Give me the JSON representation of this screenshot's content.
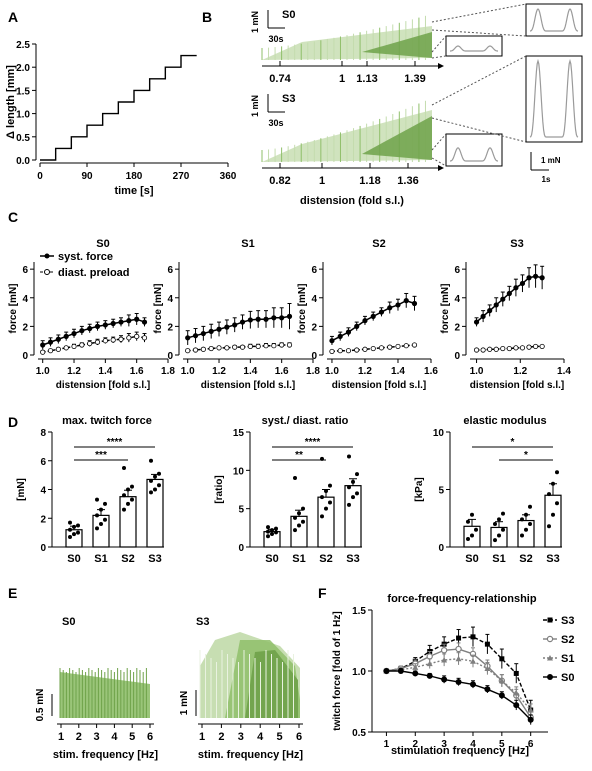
{
  "figure": {
    "panel_letters": [
      "A",
      "B",
      "C",
      "D",
      "E",
      "F"
    ],
    "colors": {
      "ink": "#000000",
      "grey": "#7f7f7f",
      "green_dark": "#6fa24a",
      "green_mid": "#8fbf6a",
      "green_light": "#c4dcae",
      "trace_grey": "#9a9a9a"
    }
  },
  "chart_data": [
    {
      "id": "A",
      "type": "line",
      "xlabel": "time [s]",
      "ylabel": "Δ length [mm]",
      "x_ticks": [
        "0",
        "90",
        "180",
        "270",
        "360"
      ],
      "y_ticks": [
        "0.0",
        "0.5",
        "1.0",
        "1.5",
        "2.0",
        "2.5"
      ],
      "xlim": [
        0,
        360
      ],
      "ylim": [
        0,
        2.5
      ],
      "step_x": [
        0,
        30,
        30,
        60,
        60,
        90,
        90,
        120,
        120,
        150,
        150,
        180,
        180,
        210,
        210,
        240,
        240,
        270,
        270,
        300
      ],
      "step_y": [
        0,
        0,
        0.25,
        0.25,
        0.5,
        0.5,
        0.75,
        0.75,
        1.0,
        1.0,
        1.25,
        1.25,
        1.5,
        1.5,
        1.75,
        1.75,
        2.0,
        2.0,
        2.25,
        2.25
      ]
    },
    {
      "id": "B",
      "type": "area",
      "xlabel": "distension (fold s.l.)",
      "traces": [
        {
          "label": "S0",
          "ticks": [
            "0.74",
            "1",
            "1.13",
            "1.39"
          ],
          "scale_y": "1 mN",
          "scale_x": "30s"
        },
        {
          "label": "S3",
          "ticks": [
            "0.82",
            "1",
            "1.18",
            "1.36"
          ],
          "scale_y": "1 mN",
          "scale_x": "30s"
        }
      ],
      "inset_scale": {
        "y": "1 mN",
        "x": "1s"
      }
    },
    {
      "id": "C",
      "type": "line",
      "xlabel": "distension [fold s.l.]",
      "ylabel": "force [mN]",
      "legend": [
        "syst. force",
        "diast. preload"
      ],
      "legend_position": "top-left",
      "ylim": [
        0,
        6.5
      ],
      "y_ticks": [
        "0",
        "2",
        "4",
        "6"
      ],
      "panels": [
        {
          "title": "S0",
          "x_ticks": [
            "1.0",
            "1.2",
            "1.4",
            "1.6",
            "1.8"
          ],
          "xlim": [
            0.97,
            1.8
          ],
          "x": [
            1.0,
            1.05,
            1.1,
            1.15,
            1.2,
            1.25,
            1.3,
            1.35,
            1.4,
            1.45,
            1.5,
            1.55,
            1.6,
            1.65
          ],
          "syst": [
            0.7,
            0.9,
            1.1,
            1.3,
            1.5,
            1.7,
            1.85,
            2.0,
            2.1,
            2.2,
            2.3,
            2.4,
            2.5,
            2.3
          ],
          "syst_err": [
            0.3,
            0.3,
            0.3,
            0.3,
            0.3,
            0.3,
            0.3,
            0.3,
            0.3,
            0.3,
            0.3,
            0.4,
            0.4,
            0.3
          ],
          "diast": [
            0.2,
            0.3,
            0.4,
            0.5,
            0.6,
            0.7,
            0.8,
            0.9,
            1.0,
            1.05,
            1.1,
            1.2,
            1.3,
            1.2
          ],
          "diast_err": [
            0.1,
            0.1,
            0.1,
            0.1,
            0.15,
            0.15,
            0.2,
            0.2,
            0.2,
            0.2,
            0.25,
            0.3,
            0.3,
            0.3
          ]
        },
        {
          "title": "S1",
          "x_ticks": [
            "1.0",
            "1.2",
            "1.4",
            "1.6",
            "1.8"
          ],
          "xlim": [
            0.97,
            1.8
          ],
          "x": [
            1.0,
            1.05,
            1.1,
            1.15,
            1.2,
            1.25,
            1.3,
            1.35,
            1.4,
            1.45,
            1.5,
            1.55,
            1.6,
            1.65
          ],
          "syst": [
            1.2,
            1.35,
            1.5,
            1.65,
            1.8,
            1.95,
            2.1,
            2.3,
            2.45,
            2.5,
            2.5,
            2.6,
            2.6,
            2.7
          ],
          "syst_err": [
            0.5,
            0.5,
            0.5,
            0.5,
            0.5,
            0.5,
            0.5,
            0.5,
            0.6,
            0.6,
            0.6,
            0.7,
            0.7,
            0.9
          ],
          "diast": [
            0.3,
            0.35,
            0.4,
            0.45,
            0.5,
            0.5,
            0.55,
            0.55,
            0.6,
            0.6,
            0.65,
            0.65,
            0.7,
            0.7
          ],
          "diast_err": [
            0.1,
            0.1,
            0.1,
            0.1,
            0.1,
            0.1,
            0.1,
            0.1,
            0.15,
            0.15,
            0.15,
            0.15,
            0.15,
            0.15
          ]
        },
        {
          "title": "S2",
          "x_ticks": [
            "1.0",
            "1.2",
            "1.4",
            "1.6"
          ],
          "xlim": [
            0.97,
            1.6
          ],
          "x": [
            1.0,
            1.05,
            1.1,
            1.15,
            1.2,
            1.25,
            1.3,
            1.35,
            1.4,
            1.45,
            1.5
          ],
          "syst": [
            1.0,
            1.3,
            1.6,
            2.0,
            2.4,
            2.7,
            3.0,
            3.3,
            3.5,
            3.8,
            3.6
          ],
          "syst_err": [
            0.3,
            0.3,
            0.3,
            0.3,
            0.3,
            0.3,
            0.3,
            0.4,
            0.4,
            0.5,
            0.5
          ],
          "diast": [
            0.25,
            0.3,
            0.3,
            0.35,
            0.4,
            0.45,
            0.5,
            0.55,
            0.6,
            0.65,
            0.7
          ],
          "diast_err": [
            0.05,
            0.05,
            0.05,
            0.05,
            0.05,
            0.05,
            0.05,
            0.05,
            0.05,
            0.05,
            0.05
          ]
        },
        {
          "title": "S3",
          "x_ticks": [
            "1.0",
            "1.2",
            "1.4"
          ],
          "xlim": [
            0.97,
            1.4
          ],
          "x": [
            1.0,
            1.03,
            1.06,
            1.09,
            1.12,
            1.15,
            1.18,
            1.21,
            1.24,
            1.27,
            1.3
          ],
          "syst": [
            2.3,
            2.7,
            3.1,
            3.5,
            3.9,
            4.3,
            4.7,
            5.0,
            5.4,
            5.5,
            5.4
          ],
          "syst_err": [
            0.3,
            0.4,
            0.4,
            0.5,
            0.5,
            0.5,
            0.6,
            0.6,
            0.7,
            0.8,
            0.8
          ],
          "diast": [
            0.35,
            0.35,
            0.4,
            0.4,
            0.45,
            0.45,
            0.5,
            0.5,
            0.55,
            0.6,
            0.6
          ],
          "diast_err": [
            0.05,
            0.05,
            0.05,
            0.05,
            0.05,
            0.05,
            0.05,
            0.05,
            0.05,
            0.05,
            0.05
          ]
        }
      ]
    },
    {
      "id": "D",
      "type": "bar",
      "categories": [
        "S0",
        "S1",
        "S2",
        "S3"
      ],
      "panels": [
        {
          "title": "max. twitch force",
          "ylabel": "[mN]",
          "ylim": [
            0,
            8
          ],
          "y_ticks": [
            "0",
            "2",
            "4",
            "6",
            "8"
          ],
          "values": [
            1.2,
            2.2,
            3.5,
            4.7
          ],
          "errors": [
            0.25,
            0.4,
            0.45,
            0.35
          ],
          "points": [
            [
              0.7,
              0.9,
              1.0,
              1.2,
              1.4,
              1.5,
              1.7
            ],
            [
              1.3,
              1.6,
              1.9,
              2.2,
              2.6,
              3.0,
              3.3
            ],
            [
              2.6,
              3.0,
              3.3,
              3.6,
              4.0,
              4.2,
              5.5
            ],
            [
              3.8,
              4.0,
              4.3,
              4.6,
              4.9,
              5.1,
              6.0
            ]
          ],
          "significance": [
            {
              "from": 0,
              "to": 3,
              "label": "****"
            },
            {
              "from": 0,
              "to": 2,
              "label": "***"
            }
          ]
        },
        {
          "title": "syst./ diast. ratio",
          "ylabel": "[ratio]",
          "ylim": [
            0,
            15
          ],
          "y_ticks": [
            "0",
            "5",
            "10",
            "15"
          ],
          "values": [
            2.0,
            4.0,
            6.5,
            8.0
          ],
          "errors": [
            0.3,
            0.8,
            1.0,
            0.9
          ],
          "points": [
            [
              1.4,
              1.7,
              1.9,
              2.0,
              2.2,
              2.4,
              2.6
            ],
            [
              2.2,
              2.8,
              3.3,
              3.8,
              4.4,
              5.0,
              9.0
            ],
            [
              4.0,
              5.0,
              5.8,
              6.5,
              7.3,
              8.0,
              11.5
            ],
            [
              5.5,
              6.5,
              7.0,
              7.8,
              8.5,
              9.5,
              11.8
            ]
          ],
          "significance": [
            {
              "from": 0,
              "to": 3,
              "label": "****"
            },
            {
              "from": 0,
              "to": 2,
              "label": "**"
            }
          ]
        },
        {
          "title": "elastic modulus",
          "ylabel": "[kPa]",
          "ylim": [
            0,
            10
          ],
          "y_ticks": [
            "0",
            "5",
            "10"
          ],
          "values": [
            1.8,
            1.7,
            2.3,
            4.5
          ],
          "errors": [
            0.6,
            0.5,
            0.5,
            1.0
          ],
          "points": [
            [
              0.7,
              1.0,
              1.5,
              2.2,
              2.8
            ],
            [
              0.6,
              1.0,
              1.5,
              2.0,
              2.4,
              2.9
            ],
            [
              1.0,
              1.5,
              2.0,
              2.4,
              2.8,
              3.5
            ],
            [
              1.8,
              2.8,
              3.8,
              4.6,
              5.5,
              6.5
            ]
          ],
          "significance": [
            {
              "from": 0,
              "to": 3,
              "label": "*"
            },
            {
              "from": 1,
              "to": 3,
              "label": "*"
            }
          ]
        }
      ]
    },
    {
      "id": "E",
      "type": "area",
      "xlabel": "stim. frequency [Hz]",
      "x_ticks": [
        "1",
        "2",
        "3",
        "4",
        "5",
        "6"
      ],
      "panels": [
        {
          "title": "S0",
          "scale": "0.5 mN"
        },
        {
          "title": "S3",
          "scale": "1 mN"
        }
      ]
    },
    {
      "id": "F",
      "type": "line",
      "title": "force-frequency-relationship",
      "xlabel": "stimulation frequency [Hz]",
      "ylabel": "twitch force [fold of 1 Hz]",
      "x": [
        1,
        1.5,
        2,
        2.5,
        3,
        3.5,
        4,
        4.5,
        5,
        5.5,
        6
      ],
      "xlim": [
        0.5,
        6.6
      ],
      "ylim": [
        0.5,
        1.5
      ],
      "x_ticks": [
        "1",
        "2",
        "3",
        "4",
        "5",
        "6"
      ],
      "y_ticks": [
        "0.5",
        "1.0",
        "1.5"
      ],
      "legend_position": "right",
      "series": [
        {
          "name": "S3",
          "style": "dashed",
          "marker": "square",
          "values": [
            1.0,
            1.02,
            1.08,
            1.16,
            1.22,
            1.27,
            1.28,
            1.22,
            1.1,
            0.98,
            0.68
          ],
          "errors": [
            0,
            0.02,
            0.03,
            0.05,
            0.06,
            0.07,
            0.08,
            0.08,
            0.08,
            0.08,
            0.08
          ]
        },
        {
          "name": "S2",
          "style": "solid-grey",
          "marker": "circle-open",
          "values": [
            1.0,
            1.02,
            1.06,
            1.12,
            1.17,
            1.18,
            1.14,
            1.04,
            0.92,
            0.8,
            0.62
          ],
          "errors": [
            0,
            0.02,
            0.03,
            0.04,
            0.05,
            0.05,
            0.05,
            0.05,
            0.05,
            0.05,
            0.05
          ]
        },
        {
          "name": "S1",
          "style": "dotted-grey",
          "marker": "triangle",
          "values": [
            1.0,
            1.01,
            1.03,
            1.06,
            1.09,
            1.1,
            1.08,
            1.02,
            0.92,
            0.82,
            0.68
          ],
          "errors": [
            0,
            0.02,
            0.03,
            0.04,
            0.05,
            0.05,
            0.05,
            0.05,
            0.05,
            0.05,
            0.05
          ]
        },
        {
          "name": "S0",
          "style": "solid",
          "marker": "circle",
          "values": [
            1.0,
            1.0,
            0.98,
            0.96,
            0.93,
            0.91,
            0.89,
            0.85,
            0.8,
            0.72,
            0.6
          ],
          "errors": [
            0,
            0.02,
            0.02,
            0.02,
            0.03,
            0.03,
            0.03,
            0.03,
            0.03,
            0.04,
            0.04
          ]
        }
      ]
    }
  ]
}
